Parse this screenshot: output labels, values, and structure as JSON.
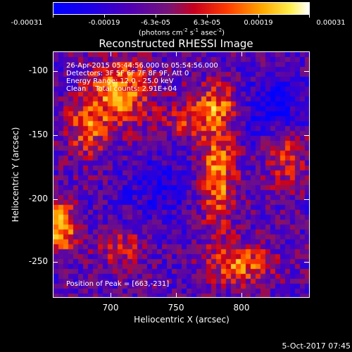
{
  "colorbar": {
    "labels": [
      "-0.00031",
      "-0.00019",
      "-6.3e-05",
      "6.3e-05",
      "0.00019",
      "0.00031"
    ],
    "units_prefix": "(photons cm",
    "units_sup1": "-2",
    "units_mid1": " s",
    "units_sup2": "-1",
    "units_mid2": " asec",
    "units_sup3": "-2",
    "units_suffix": ")"
  },
  "title": "Reconstructed RHESSI Image",
  "annotations": {
    "time_range": "26-Apr-2015 05:44:56.000 to 05:54:56.000",
    "detectors": "Detectors: 3F 5F 6F 7F 8F 9F, Att 0",
    "energy": "Energy Range: 12.0 - 25.0 keV",
    "method": "Clean    Total counts: 2.91E+04",
    "peak": "Position of Peak = [663,-231]"
  },
  "axes": {
    "x_title": "Heliocentric X (arcsec)",
    "y_title": "Heliocentric Y (arcsec)",
    "x_ticks": [
      "700",
      "750",
      "800"
    ],
    "y_ticks": [
      "-100",
      "-150",
      "-200",
      "-250"
    ]
  },
  "footer": {
    "date": "5-Oct-2017 07:45"
  },
  "colors": {
    "background": "#000000",
    "text": "#ffffff"
  }
}
